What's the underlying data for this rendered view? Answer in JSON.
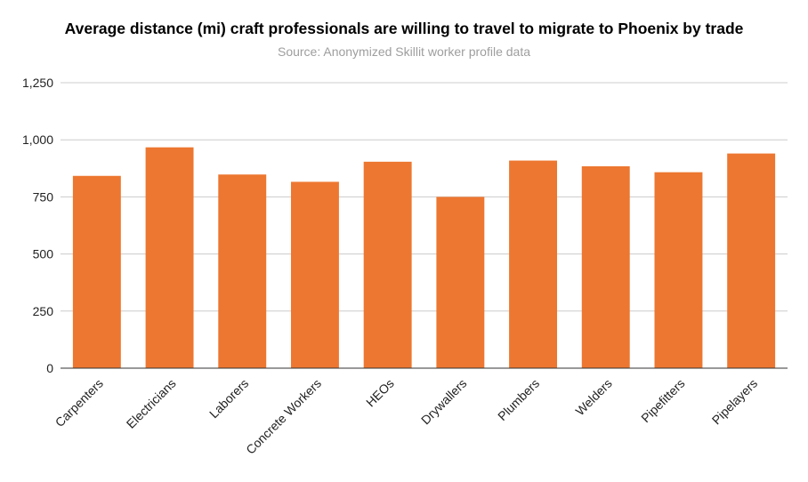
{
  "chart_data": {
    "type": "bar",
    "title": "Average distance (mi) craft professionals are willing to travel to migrate to Phoenix by trade",
    "subtitle": "Source: Anonymized Skillit worker profile data",
    "xlabel": "",
    "ylabel": "",
    "categories": [
      "Carpenters",
      "Electricians",
      "Laborers",
      "Concrete Workers",
      "HEOs",
      "Drywallers",
      "Plumbers",
      "Welders",
      "Pipefitters",
      "Pipelayers"
    ],
    "values": [
      842,
      967,
      848,
      816,
      904,
      750,
      909,
      884,
      858,
      940
    ],
    "ylim": [
      0,
      1250
    ],
    "yticks": [
      0,
      250,
      500,
      750,
      1000,
      1250
    ],
    "ytick_labels": [
      "0",
      "250",
      "500",
      "750",
      "1,000",
      "1,250"
    ],
    "grid": true,
    "legend": "none",
    "bar_color": "#ed7730"
  }
}
